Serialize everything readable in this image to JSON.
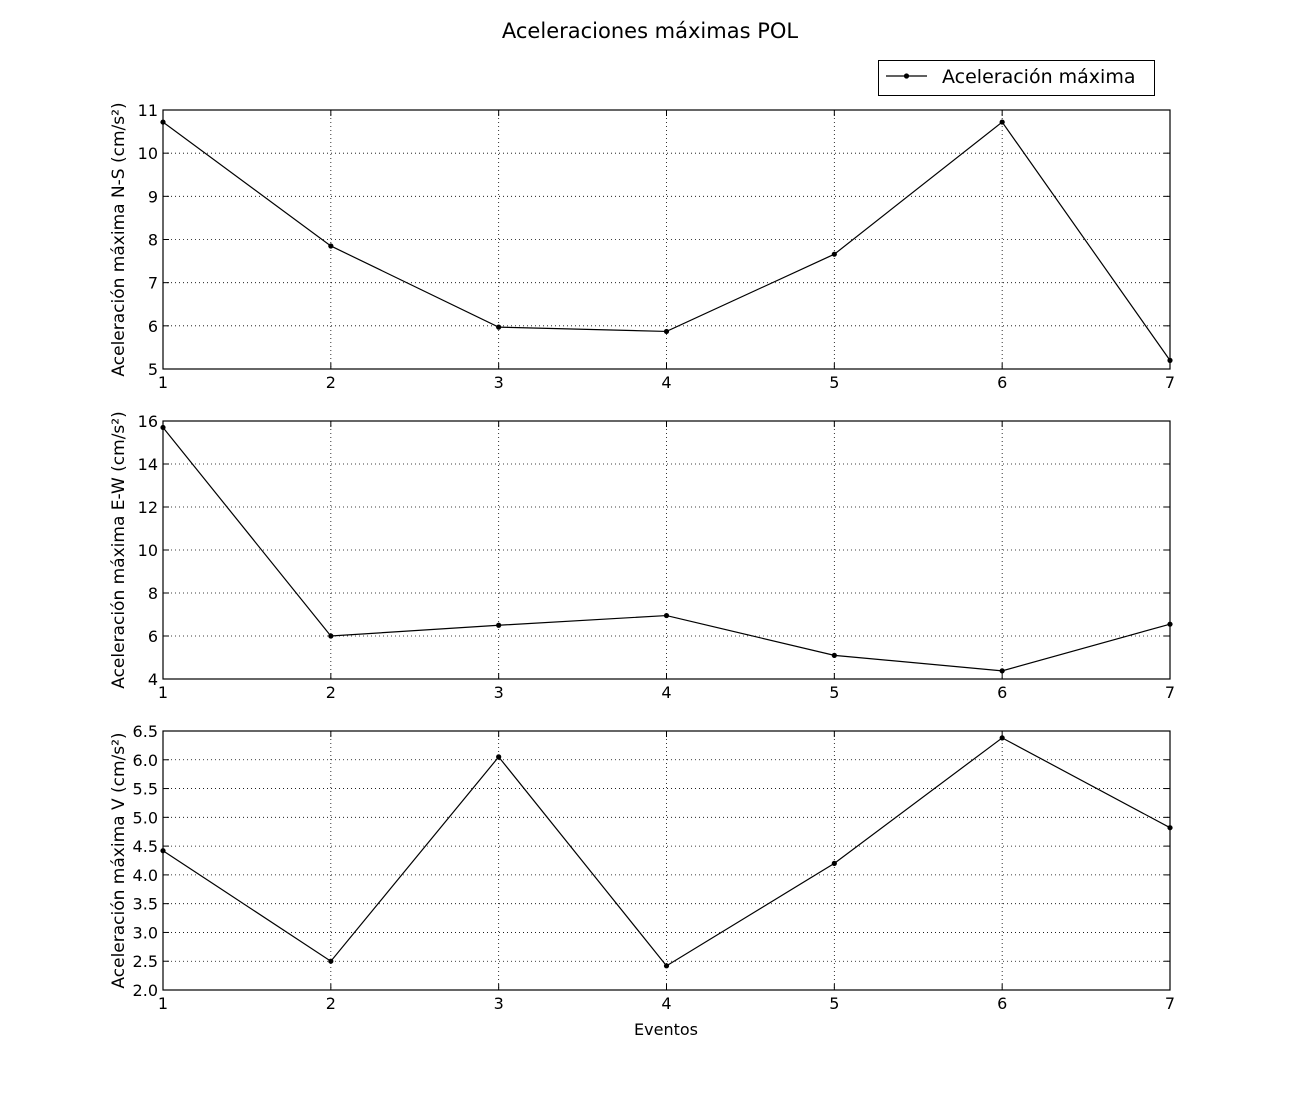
{
  "chart_data": {
    "type": "line",
    "title": "Aceleraciones máximas POL",
    "legend": {
      "label": "Aceleración máxima",
      "placement": "top-right"
    },
    "line_color": "#000000",
    "grid": true,
    "x": [
      1,
      2,
      3,
      4,
      5,
      6,
      7
    ],
    "xlim": [
      1,
      7
    ],
    "xlabel": "Eventos",
    "subplots": [
      {
        "id": "ns",
        "ylabel": "Aceleración máxima N-S (cm/s²)",
        "ylim": [
          5,
          11
        ],
        "yticks": [
          5,
          6,
          7,
          8,
          9,
          10,
          11
        ],
        "ytick_labels": [
          "5",
          "6",
          "7",
          "8",
          "9",
          "10",
          "11"
        ],
        "values": [
          10.72,
          7.85,
          5.97,
          5.87,
          7.66,
          10.72,
          5.2
        ]
      },
      {
        "id": "ew",
        "ylabel": "Aceleración máxima E-W (cm/s²)",
        "ylim": [
          4,
          16
        ],
        "yticks": [
          4,
          6,
          8,
          10,
          12,
          14,
          16
        ],
        "ytick_labels": [
          "4",
          "6",
          "8",
          "10",
          "12",
          "14",
          "16"
        ],
        "values": [
          15.7,
          6.0,
          6.5,
          6.95,
          5.1,
          4.38,
          6.55
        ]
      },
      {
        "id": "v",
        "ylabel": "Aceleración máxima V (cm/s²)",
        "ylim": [
          2.0,
          6.5
        ],
        "yticks": [
          2.0,
          2.5,
          3.0,
          3.5,
          4.0,
          4.5,
          5.0,
          5.5,
          6.0,
          6.5
        ],
        "ytick_labels": [
          "2.0",
          "2.5",
          "3.0",
          "3.5",
          "4.0",
          "4.5",
          "5.0",
          "5.5",
          "6.0",
          "6.5"
        ],
        "values": [
          4.42,
          2.5,
          6.05,
          2.42,
          4.2,
          6.38,
          4.82
        ]
      }
    ]
  }
}
